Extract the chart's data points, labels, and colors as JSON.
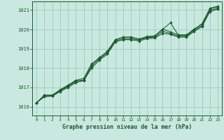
{
  "title": "Graphe pression niveau de la mer (hPa)",
  "bg_color": "#c8e8e0",
  "grid_color": "#96ccc0",
  "line_color": "#1a5c2a",
  "xlim": [
    -0.5,
    23.5
  ],
  "ylim": [
    1015.55,
    1021.45
  ],
  "yticks": [
    1016,
    1017,
    1018,
    1019,
    1020,
    1021
  ],
  "xticks": [
    0,
    1,
    2,
    3,
    4,
    5,
    6,
    7,
    8,
    9,
    10,
    11,
    12,
    13,
    14,
    15,
    16,
    17,
    18,
    19,
    20,
    21,
    22,
    23
  ],
  "series": [
    [
      1016.2,
      1016.6,
      1016.6,
      1016.85,
      1017.1,
      1017.35,
      1017.35,
      1018.2,
      1018.55,
      1018.85,
      1019.45,
      1019.6,
      1019.6,
      1019.5,
      1019.6,
      1019.65,
      1020.0,
      1020.35,
      1019.7,
      1019.7,
      1020.0,
      1020.3,
      1021.1,
      1021.2
    ],
    [
      1016.2,
      1016.6,
      1016.6,
      1016.88,
      1017.12,
      1017.37,
      1017.47,
      1018.22,
      1018.52,
      1018.88,
      1019.47,
      1019.6,
      1019.6,
      1019.5,
      1019.63,
      1019.67,
      1020.02,
      1019.87,
      1019.72,
      1019.72,
      1020.02,
      1020.27,
      1021.05,
      1021.17
    ],
    [
      1016.2,
      1016.55,
      1016.58,
      1016.82,
      1017.05,
      1017.3,
      1017.4,
      1018.1,
      1018.48,
      1018.78,
      1019.4,
      1019.52,
      1019.52,
      1019.45,
      1019.57,
      1019.6,
      1019.9,
      1019.8,
      1019.65,
      1019.65,
      1019.95,
      1020.2,
      1020.97,
      1021.1
    ],
    [
      1016.2,
      1016.52,
      1016.55,
      1016.78,
      1017.0,
      1017.25,
      1017.35,
      1018.0,
      1018.42,
      1018.72,
      1019.35,
      1019.47,
      1019.47,
      1019.4,
      1019.52,
      1019.55,
      1019.8,
      1019.75,
      1019.6,
      1019.6,
      1019.9,
      1020.15,
      1020.92,
      1021.05
    ]
  ]
}
